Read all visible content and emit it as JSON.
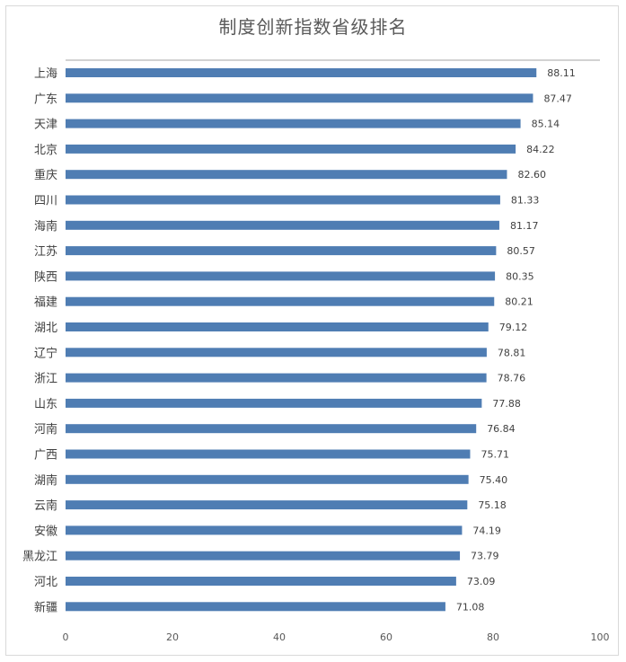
{
  "chart_data": {
    "type": "bar",
    "orientation": "horizontal",
    "title": "制度创新指数省级排名",
    "xlabel": "",
    "ylabel": "",
    "xlim": [
      0,
      100
    ],
    "xticks": [
      0,
      20,
      40,
      60,
      80,
      100
    ],
    "categories": [
      "上海",
      "广东",
      "天津",
      "北京",
      "重庆",
      "四川",
      "海南",
      "江苏",
      "陕西",
      "福建",
      "湖北",
      "辽宁",
      "浙江",
      "山东",
      "河南",
      "广西",
      "湖南",
      "云南",
      "安徽",
      "黑龙江",
      "河北",
      "新疆"
    ],
    "values": [
      88.11,
      87.47,
      85.14,
      84.22,
      82.6,
      81.33,
      81.17,
      80.57,
      80.35,
      80.21,
      79.12,
      78.81,
      78.76,
      77.88,
      76.84,
      75.71,
      75.4,
      75.18,
      74.19,
      73.79,
      73.09,
      71.08
    ],
    "value_labels": [
      "88.11",
      "87.47",
      "85.14",
      "84.22",
      "82.60",
      "81.33",
      "81.17",
      "80.57",
      "80.35",
      "80.21",
      "79.12",
      "78.81",
      "78.76",
      "77.88",
      "76.84",
      "75.71",
      "75.40",
      "75.18",
      "74.19",
      "73.79",
      "73.09",
      "71.08"
    ],
    "bar_color": "#4f7db3",
    "grid": false,
    "legend": "none"
  }
}
